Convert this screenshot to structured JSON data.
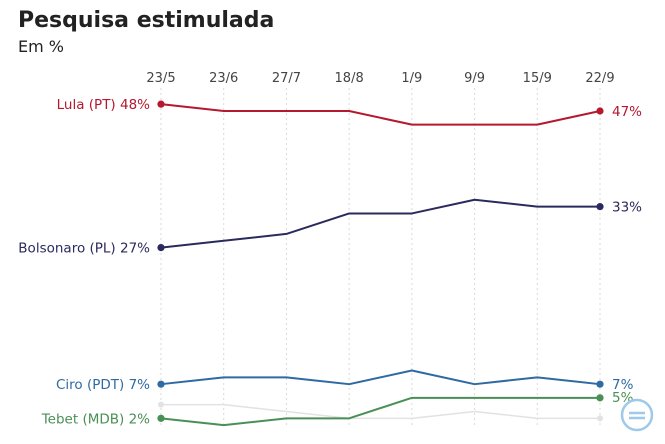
{
  "header": {
    "title": "Pesquisa estimulada",
    "subtitle": "Em %"
  },
  "chart_data": {
    "type": "line",
    "title": "Pesquisa estimulada",
    "subtitle": "Em %",
    "categories": [
      "23/5",
      "23/6",
      "27/7",
      "18/8",
      "1/9",
      "9/9",
      "15/9",
      "22/9"
    ],
    "ylim": [
      0,
      50
    ],
    "grid": "vertical-dashed",
    "series": [
      {
        "name": "Lula (PT)",
        "color": "#b5182f",
        "values": [
          48,
          47,
          47,
          47,
          45,
          45,
          45,
          47
        ],
        "start_label": "Lula (PT) 48%",
        "end_label": "47%",
        "highlight": true
      },
      {
        "name": "Bolsonaro (PL)",
        "color": "#2b2a5e",
        "values": [
          27,
          28,
          29,
          32,
          32,
          34,
          33,
          33
        ],
        "start_label": "Bolsonaro (PL) 27%",
        "end_label": "33%",
        "highlight": true
      },
      {
        "name": "Ciro (PDT)",
        "color": "#2f6aa3",
        "values": [
          7,
          8,
          8,
          7,
          9,
          7,
          8,
          7
        ],
        "start_label": "Ciro (PDT) 7%",
        "end_label": "7%",
        "highlight": true
      },
      {
        "name": "Tebet (MDB)",
        "color": "#4a8f55",
        "values": [
          2,
          1,
          2,
          2,
          5,
          5,
          5,
          5
        ],
        "start_label": "Tebet (MDB) 2%",
        "end_label": "5%",
        "highlight": true
      },
      {
        "color": "#e2e2e2",
        "values": [
          4,
          4,
          3,
          2,
          2,
          3,
          2,
          2
        ],
        "highlight": false
      }
    ]
  }
}
